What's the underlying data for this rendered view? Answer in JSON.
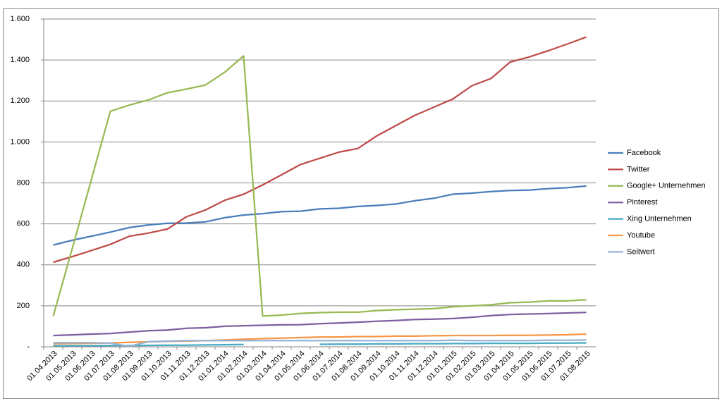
{
  "chart_data": {
    "type": "line",
    "categories": [
      "01.04.2013",
      "01.05.2013",
      "01.06.2013",
      "01.07.2013",
      "01.08.2013",
      "01.09.2013",
      "01.10.2013",
      "01.11.2013",
      "01.12.2013",
      "01.01.2014",
      "01.02.2014",
      "01.03.2014",
      "01.04.2014",
      "01.05.2014",
      "01.06.2014",
      "01.07.2014",
      "01.08.2014",
      "01.09.2014",
      "01.10.2014",
      "01.11.2014",
      "01.12.2014",
      "01.01.2015",
      "01.02.2015",
      "01.03.2015",
      "01.04.2015",
      "01.05.2015",
      "01.06.2015",
      "01.07.2015",
      "01.08.2015"
    ],
    "series": [
      {
        "name": "Facebook",
        "color": "#4a7ebb",
        "values": [
          497,
          520,
          540,
          560,
          582,
          595,
          603,
          604,
          610,
          630,
          643,
          650,
          660,
          662,
          673,
          676,
          685,
          690,
          697,
          713,
          725,
          745,
          750,
          758,
          763,
          765,
          772,
          777,
          785
        ]
      },
      {
        "name": "Twitter",
        "color": "#be4b48",
        "values": [
          413,
          440,
          470,
          500,
          540,
          555,
          575,
          635,
          668,
          715,
          745,
          790,
          840,
          890,
          920,
          950,
          968,
          1030,
          1080,
          1130,
          1170,
          1210,
          1275,
          1310,
          1390,
          1415,
          1445,
          1478,
          1512
        ]
      },
      {
        "name": "Google+ Unternehmen",
        "color": "#98b954",
        "values": [
          150,
          480,
          815,
          1150,
          1180,
          1205,
          1240,
          1258,
          1278,
          1340,
          1420,
          150,
          155,
          163,
          167,
          169,
          169,
          177,
          181,
          183,
          186,
          195,
          200,
          205,
          215,
          218,
          224,
          224,
          230
        ]
      },
      {
        "name": "Pinterest",
        "color": "#7d60a0",
        "values": [
          55,
          58,
          62,
          65,
          72,
          78,
          82,
          90,
          93,
          100,
          103,
          105,
          107,
          108,
          113,
          116,
          120,
          125,
          128,
          133,
          135,
          138,
          144,
          152,
          158,
          160,
          162,
          165,
          168
        ]
      },
      {
        "name": "Xing Unternehmen",
        "color": "#46aac5",
        "values": [
          5,
          5,
          5,
          6,
          6,
          7,
          8,
          8,
          9,
          10,
          11,
          null,
          null,
          null,
          12,
          13,
          13,
          14,
          14,
          15,
          15,
          16,
          16,
          17,
          17,
          17,
          18,
          18,
          19
        ]
      },
      {
        "name": "Youtube",
        "color": "#f79646",
        "values": [
          15,
          16,
          17,
          18,
          22,
          24,
          27,
          28,
          30,
          33,
          37,
          40,
          42,
          45,
          47,
          48,
          50,
          50,
          52,
          52,
          54,
          55,
          55,
          55,
          56,
          56,
          57,
          59,
          62
        ]
      },
      {
        "name": "Seitwert",
        "color": "#95b3d7",
        "values": [
          20,
          20,
          20,
          18,
          2,
          25,
          28,
          30,
          30,
          30,
          30,
          30,
          30,
          30,
          30,
          30,
          30,
          30,
          30,
          30,
          30,
          32,
          30,
          30,
          30,
          30,
          32,
          32,
          33
        ]
      }
    ],
    "ylim": [
      0,
      1600
    ],
    "yticks": [
      {
        "value": 0,
        "label": "-"
      },
      200,
      400,
      600,
      800,
      {
        "value": 1000,
        "label": "1.000"
      },
      {
        "value": 1200,
        "label": "1.200"
      },
      {
        "value": 1400,
        "label": "1.400"
      },
      {
        "value": 1600,
        "label": "1.600"
      }
    ],
    "grid": true,
    "legend": "right"
  }
}
